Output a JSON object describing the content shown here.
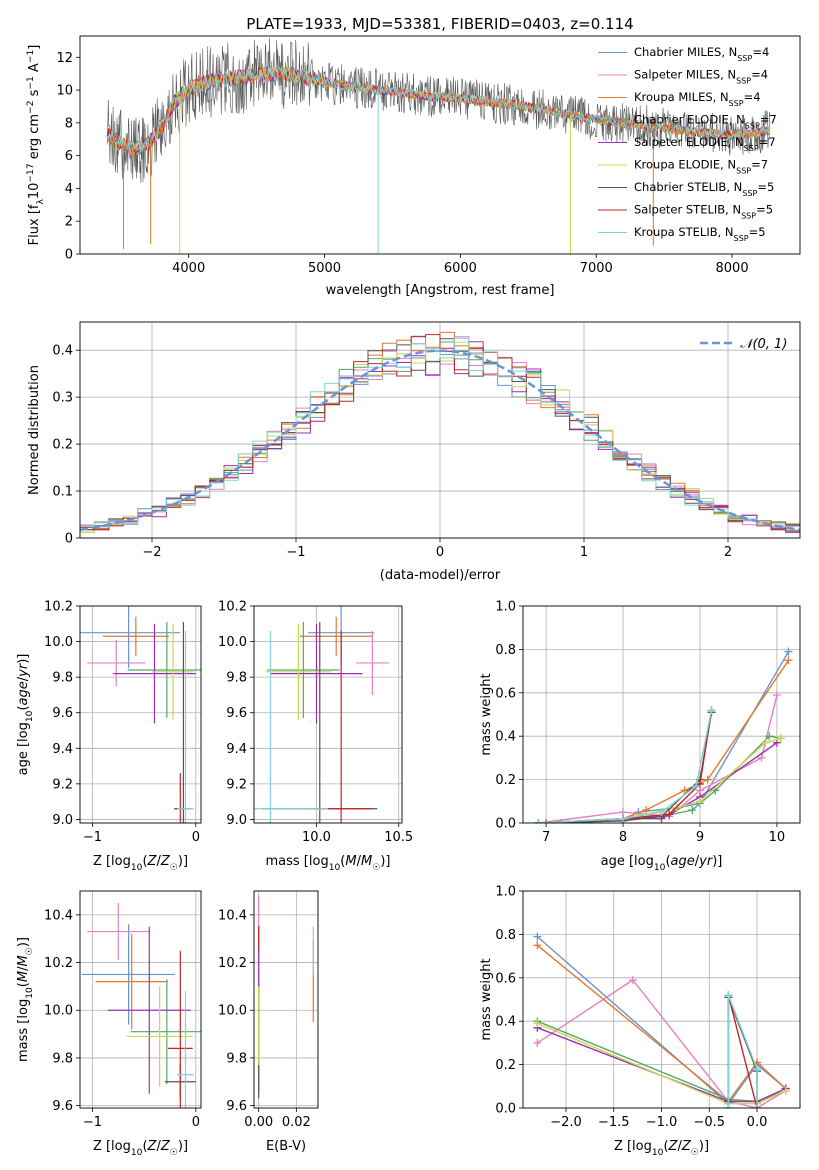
{
  "title": "PLATE=1933, MJD=53381, FIBERID=0403, z=0.114",
  "models": [
    {
      "name": "Chabrier MILES",
      "nssp": "4",
      "color": "#6b93d6"
    },
    {
      "name": "Salpeter MILES",
      "nssp": "4",
      "color": "#e77fc6"
    },
    {
      "name": "Kroupa MILES",
      "nssp": "4",
      "color": "#e07a2e"
    },
    {
      "name": "Chabrier ELODIE",
      "nssp": "7",
      "color": "#55a868"
    },
    {
      "name": "Salpeter ELODIE",
      "nssp": "7",
      "color": "#9b30b5"
    },
    {
      "name": "Kroupa ELODIE",
      "nssp": "7",
      "color": "#c8d848"
    },
    {
      "name": "Chabrier STELIB",
      "nssp": "5",
      "color": "#555555"
    },
    {
      "name": "Salpeter STELIB",
      "nssp": "5",
      "color": "#c0262a"
    },
    {
      "name": "Kroupa STELIB",
      "nssp": "5",
      "color": "#7fd4d8"
    }
  ],
  "chart_data": [
    {
      "id": "spectrum",
      "type": "line",
      "xlabel": "wavelength [Angstrom, rest frame]",
      "ylabel": "Flux [f_λ10^-17 erg cm^-2 s^-1 A^-1]",
      "xlim": [
        3200,
        8500
      ],
      "ylim": [
        0,
        13.3
      ],
      "xticks": [
        4000,
        5000,
        6000,
        7000,
        8000
      ],
      "yticks": [
        0,
        2,
        4,
        6,
        8,
        10,
        12
      ],
      "continuum": {
        "x": [
          3400,
          3500,
          3600,
          3700,
          3800,
          3900,
          4000,
          4100,
          4200,
          4300,
          4400,
          4500,
          4600,
          4700,
          4800,
          4900,
          5000,
          5200,
          5400,
          5600,
          5800,
          6000,
          6200,
          6400,
          6600,
          6800,
          7000,
          7200,
          7400,
          7600,
          7800,
          8000,
          8200,
          8280
        ],
        "y": [
          7.3,
          6.7,
          6.4,
          6.7,
          7.7,
          9.3,
          10.0,
          10.4,
          10.6,
          10.7,
          10.8,
          10.9,
          11.0,
          11.0,
          10.9,
          10.7,
          10.5,
          10.2,
          10.0,
          9.8,
          9.6,
          9.5,
          9.3,
          9.1,
          8.8,
          8.5,
          8.2,
          8.0,
          7.8,
          7.6,
          7.4,
          7.2,
          7.4,
          7.6
        ]
      },
      "absorption_dips": [
        {
          "x": 3520,
          "y": 0.3
        },
        {
          "x": 3720,
          "y": 0.6
        },
        {
          "x": 3934,
          "y": 0.0
        },
        {
          "x": 5395,
          "y": 0.0
        },
        {
          "x": 6810,
          "y": 0.0
        },
        {
          "x": 7420,
          "y": 0.5
        }
      ]
    },
    {
      "id": "residuals",
      "type": "bar",
      "xlabel": "(data-model)/error",
      "ylabel": "Normed distribution",
      "xlim": [
        -2.5,
        2.5
      ],
      "ylim": [
        0,
        0.46
      ],
      "xticks": [
        -2,
        -1,
        0,
        1,
        2
      ],
      "xticklabels": [
        "−2",
        "−1",
        "0",
        "1",
        "2"
      ],
      "yticks": [
        0.0,
        0.1,
        0.2,
        0.3,
        0.4
      ],
      "bin_width": 0.1,
      "gaussian_label": "𝒩(0, 1)",
      "gaussian_color": "#6b93d6"
    },
    {
      "id": "z-age",
      "type": "scatter",
      "xlabel": "Z [log10(Z/Z☉)]",
      "ylabel": "age  [log10(age/yr)]",
      "xlim": [
        -1.12,
        0.05
      ],
      "ylim": [
        8.98,
        10.2
      ],
      "xticks": [
        -1,
        0
      ],
      "xticklabels": [
        "−1",
        "0"
      ],
      "yticks": [
        9.0,
        9.2,
        9.4,
        9.6,
        9.8,
        10.0,
        10.2
      ],
      "yticklabels": [
        "9.0",
        "9.2",
        "9.4",
        "9.6",
        "9.8",
        "10.0",
        "10.2"
      ],
      "points": [
        {
          "x": -0.65,
          "y": 10.05,
          "xerr": 0.5,
          "yerr": 0.2
        },
        {
          "x": -0.77,
          "y": 9.88,
          "xerr": 0.28,
          "yerr": 0.13
        },
        {
          "x": -0.58,
          "y": 10.03,
          "xerr": 0.32,
          "yerr": 0.11
        },
        {
          "x": -0.28,
          "y": 9.84,
          "xerr": 0.38,
          "yerr": 0.27
        },
        {
          "x": -0.4,
          "y": 9.82,
          "xerr": 0.4,
          "yerr": 0.28
        },
        {
          "x": -0.22,
          "y": 9.83,
          "xerr": 0.2,
          "yerr": 0.27
        },
        {
          "x": -0.12,
          "y": 9.06,
          "xerr": 0.08,
          "yerr": 1.05
        },
        {
          "x": -0.15,
          "y": 9.06,
          "xerr": 0.06,
          "yerr": 0.2
        },
        {
          "x": -0.1,
          "y": 9.06,
          "xerr": 0.08,
          "yerr": 1.0
        }
      ]
    },
    {
      "id": "mass-age",
      "type": "scatter",
      "xlabel": "mass [log10(M/M☉)]",
      "ylabel": "",
      "xlim": [
        9.62,
        10.52
      ],
      "ylim": [
        8.98,
        10.2
      ],
      "xticks": [
        10.0,
        10.5
      ],
      "xticklabels": [
        "10.0",
        "10.5"
      ],
      "yticks": [
        9.0,
        9.2,
        9.4,
        9.6,
        9.8,
        10.0,
        10.2
      ],
      "yticklabels": [
        "9.0",
        "9.2",
        "9.4",
        "9.6",
        "9.8",
        "10.0",
        "10.2"
      ],
      "points": [
        {
          "x": 10.15,
          "y": 10.05,
          "xerr": 0.2,
          "yerr": 0.18
        },
        {
          "x": 10.34,
          "y": 9.88,
          "xerr": 0.1,
          "yerr": 0.18
        },
        {
          "x": 10.12,
          "y": 10.03,
          "xerr": 0.22,
          "yerr": 0.11
        },
        {
          "x": 9.92,
          "y": 9.84,
          "xerr": 0.22,
          "yerr": 0.27
        },
        {
          "x": 10.0,
          "y": 9.82,
          "xerr": 0.28,
          "yerr": 0.28
        },
        {
          "x": 9.89,
          "y": 9.83,
          "xerr": 0.2,
          "yerr": 0.27
        },
        {
          "x": 10.02,
          "y": 9.06,
          "xerr": 0.35,
          "yerr": 1.05
        },
        {
          "x": 10.15,
          "y": 9.06,
          "xerr": 0.18,
          "yerr": 1.0
        },
        {
          "x": 9.72,
          "y": 9.06,
          "xerr": 0.35,
          "yerr": 1.0
        }
      ]
    },
    {
      "id": "age-weight",
      "type": "line",
      "xlabel": "age  [log10(age/yr)]",
      "ylabel": "mass weight",
      "xlim": [
        6.7,
        10.3
      ],
      "ylim": [
        0.0,
        1.0
      ],
      "xticks": [
        7,
        8,
        9,
        10
      ],
      "yticks": [
        0.0,
        0.2,
        0.4,
        0.6,
        0.8,
        1.0
      ],
      "yticklabels": [
        "0.0",
        "0.2",
        "0.4",
        "0.6",
        "0.8",
        "1.0"
      ],
      "series": [
        {
          "x": [
            6.9,
            7.0,
            8.0,
            8.2,
            8.7,
            9.0,
            10.15
          ],
          "y": [
            0.0,
            0.0,
            0.01,
            0.05,
            0.07,
            0.09,
            0.79
          ]
        },
        {
          "x": [
            6.9,
            8.0,
            8.6,
            9.0,
            9.8,
            10.0
          ],
          "y": [
            0.0,
            0.05,
            0.03,
            0.15,
            0.3,
            0.59
          ]
        },
        {
          "x": [
            6.9,
            7.0,
            8.0,
            8.3,
            8.8,
            9.1,
            10.15
          ],
          "y": [
            0.0,
            0.0,
            0.02,
            0.06,
            0.15,
            0.2,
            0.75
          ]
        },
        {
          "x": [
            6.9,
            7.2,
            8.0,
            8.5,
            8.9,
            9.2,
            9.9,
            10.05
          ],
          "y": [
            0.0,
            0.0,
            0.02,
            0.03,
            0.06,
            0.15,
            0.4,
            0.39
          ]
        },
        {
          "x": [
            6.9,
            8.0,
            8.5,
            9.0,
            10.0
          ],
          "y": [
            0.0,
            0.02,
            0.02,
            0.12,
            0.37
          ]
        },
        {
          "x": [
            6.9,
            7.1,
            8.0,
            8.7,
            9.0,
            9.85,
            10.05
          ],
          "y": [
            0.0,
            0.0,
            0.02,
            0.07,
            0.1,
            0.37,
            0.39
          ]
        },
        {
          "x": [
            6.9,
            8.0,
            8.5,
            9.0,
            9.15
          ],
          "y": [
            0.0,
            0.01,
            0.03,
            0.2,
            0.51
          ]
        },
        {
          "x": [
            6.9,
            8.0,
            8.6,
            9.0,
            9.15
          ],
          "y": [
            0.0,
            0.02,
            0.04,
            0.18,
            0.52
          ]
        },
        {
          "x": [
            6.9,
            8.0,
            8.5,
            8.95,
            9.15
          ],
          "y": [
            0.0,
            0.02,
            0.05,
            0.17,
            0.52
          ]
        }
      ]
    },
    {
      "id": "z-mass",
      "type": "scatter",
      "xlabel": "Z [log10(Z/Z☉)]",
      "ylabel": "mass [log10(M/M☉)]",
      "xlim": [
        -1.12,
        0.05
      ],
      "ylim": [
        9.59,
        10.5
      ],
      "xticks": [
        -1,
        0
      ],
      "xticklabels": [
        "−1",
        "0"
      ],
      "yticks": [
        9.6,
        9.8,
        10.0,
        10.2,
        10.4
      ],
      "yticklabels": [
        "9.6",
        "9.8",
        "10.0",
        "10.2",
        "10.4"
      ],
      "points": [
        {
          "x": -0.65,
          "y": 10.15,
          "xerr": 0.45,
          "yerr": 0.21
        },
        {
          "x": -0.75,
          "y": 10.33,
          "xerr": 0.3,
          "yerr": 0.12
        },
        {
          "x": -0.62,
          "y": 10.12,
          "xerr": 0.35,
          "yerr": 0.2
        },
        {
          "x": -0.28,
          "y": 9.91,
          "xerr": 0.35,
          "yerr": 0.22
        },
        {
          "x": -0.45,
          "y": 10.0,
          "xerr": 0.4,
          "yerr": 0.35
        },
        {
          "x": -0.35,
          "y": 9.89,
          "xerr": 0.32,
          "yerr": 0.21
        },
        {
          "x": -0.15,
          "y": 9.7,
          "xerr": 0.15,
          "yerr": 0.07
        },
        {
          "x": -0.15,
          "y": 9.84,
          "xerr": 0.12,
          "yerr": 0.41
        },
        {
          "x": -0.1,
          "y": 9.73,
          "xerr": 0.08,
          "yerr": 0.35
        }
      ]
    },
    {
      "id": "ebv-mass",
      "type": "scatter",
      "xlabel": "E(B-V)",
      "ylabel": "",
      "xlim": [
        -0.0025,
        0.0315
      ],
      "ylim": [
        9.59,
        10.5
      ],
      "xticks": [
        0.0,
        0.02
      ],
      "xticklabels": [
        "0.00",
        "0.02"
      ],
      "yticks": [
        9.6,
        9.8,
        10.0,
        10.2,
        10.4
      ],
      "yticklabels": [
        "9.6",
        "9.8",
        "10.0",
        "10.2",
        "10.4"
      ],
      "points": [
        {
          "x": 0.0,
          "y": 10.15,
          "xerr": 0,
          "yerr": 0.21
        },
        {
          "x": 0.0,
          "y": 10.33,
          "xerr": 0,
          "yerr": 0.15
        },
        {
          "x": 0.029,
          "y": 10.12,
          "xerr": 0,
          "yerr": 0.17
        },
        {
          "x": 0.0,
          "y": 9.91,
          "xerr": 0,
          "yerr": 0.22
        },
        {
          "x": 0.0,
          "y": 10.0,
          "xerr": 0,
          "yerr": 0.35
        },
        {
          "x": 0.0,
          "y": 9.89,
          "xerr": 0,
          "yerr": 0.21
        },
        {
          "x": 0.0,
          "y": 9.7,
          "xerr": 0,
          "yerr": 0.07
        },
        {
          "x": 0.0,
          "y": 10.3,
          "xerr": 0,
          "yerr": 0.05
        },
        {
          "x": 0.029,
          "y": 10.25,
          "xerr": 0,
          "yerr": 0.1
        }
      ]
    },
    {
      "id": "z-weight",
      "type": "line",
      "xlabel": "Z [log10(Z/Z☉)]",
      "ylabel": "mass weight",
      "xlim": [
        -2.45,
        0.45
      ],
      "ylim": [
        0.0,
        1.0
      ],
      "xticks": [
        -2.0,
        -1.5,
        -1.0,
        -0.5,
        0.0
      ],
      "xticklabels": [
        "−2.0",
        "−1.5",
        "−1.0",
        "−0.5",
        "0.0"
      ],
      "yticks": [
        0.0,
        0.2,
        0.4,
        0.6,
        0.8,
        1.0
      ],
      "yticklabels": [
        "0.0",
        "0.2",
        "0.4",
        "0.6",
        "0.8",
        "1.0"
      ],
      "series": [
        {
          "x": [
            -2.3,
            -0.3,
            0.0,
            0.3
          ],
          "y": [
            0.79,
            0.02,
            0.2,
            0.09
          ]
        },
        {
          "x": [
            -2.3,
            -1.3,
            -0.3,
            0.0,
            0.3
          ],
          "y": [
            0.3,
            0.59,
            0.03,
            0.0,
            0.08
          ]
        },
        {
          "x": [
            -2.3,
            -0.3,
            0.0,
            0.3
          ],
          "y": [
            0.75,
            0.03,
            0.21,
            0.09
          ]
        },
        {
          "x": [
            -2.3,
            -0.3,
            0.0,
            0.3
          ],
          "y": [
            0.4,
            0.04,
            0.03,
            0.08
          ]
        },
        {
          "x": [
            -2.3,
            -0.3,
            0.0,
            0.3
          ],
          "y": [
            0.37,
            0.03,
            0.03,
            0.09
          ]
        },
        {
          "x": [
            -2.3,
            -0.3,
            0.0,
            0.3
          ],
          "y": [
            0.39,
            0.02,
            0.02,
            0.08
          ]
        },
        {
          "x": [
            -0.3,
            -0.3,
            0.0,
            0.0
          ],
          "y": [
            0.0,
            0.51,
            0.17,
            0.0
          ]
        },
        {
          "x": [
            -0.3,
            -0.3,
            0.0
          ],
          "y": [
            0.03,
            0.52,
            0.0
          ]
        },
        {
          "x": [
            -0.3,
            -0.3,
            0.0,
            0.0
          ],
          "y": [
            0.02,
            0.52,
            0.18,
            0.0
          ]
        }
      ]
    }
  ]
}
